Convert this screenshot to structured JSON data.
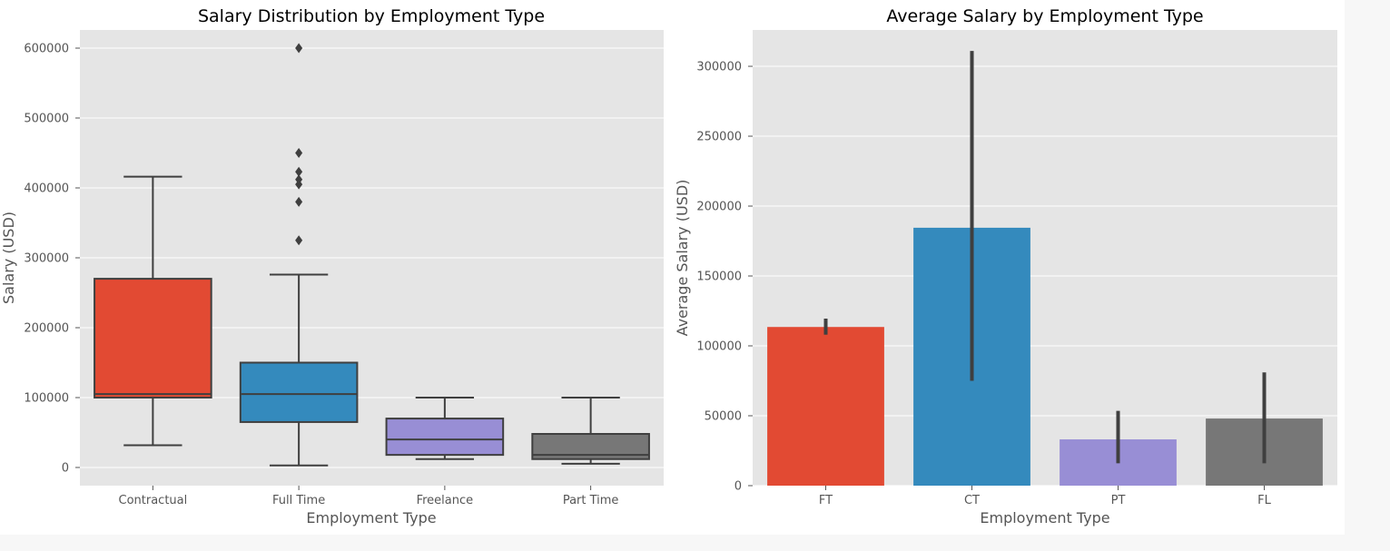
{
  "chart_data": [
    {
      "type": "box",
      "title": "Salary Distribution by Employment Type",
      "xlabel": "Employment Type",
      "ylabel": "Salary (USD)",
      "ylim": [
        -26000,
        626000
      ],
      "yticks": [
        0,
        100000,
        200000,
        300000,
        400000,
        500000,
        600000
      ],
      "ytick_labels": [
        "0",
        "100000",
        "200000",
        "300000",
        "400000",
        "500000",
        "600000"
      ],
      "grid": true,
      "categories": [
        "Contractual",
        "Full Time",
        "Freelance",
        "Part Time"
      ],
      "boxes": [
        {
          "name": "Contractual",
          "color": "#E24A33",
          "whisker_low": 31875,
          "q1": 100000,
          "median": 105000,
          "q3": 270000,
          "whisker_high": 416000,
          "outliers": []
        },
        {
          "name": "Full Time",
          "color": "#348ABD",
          "whisker_low": 2859,
          "q1": 65000,
          "median": 105000,
          "q3": 150000,
          "whisker_high": 276000,
          "outliers": [
            325000,
            380000,
            405000,
            412000,
            423000,
            450000,
            600000
          ]
        },
        {
          "name": "Freelance",
          "color": "#988ED5",
          "whisker_low": 12000,
          "q1": 18000,
          "median": 40000,
          "q3": 70000,
          "whisker_high": 100000,
          "outliers": []
        },
        {
          "name": "Part Time",
          "color": "#777777",
          "whisker_low": 5409,
          "q1": 12000,
          "median": 18000,
          "q3": 48000,
          "whisker_high": 100000,
          "outliers": []
        }
      ]
    },
    {
      "type": "bar",
      "title": "Average Salary by Employment Type",
      "xlabel": "Employment Type",
      "ylabel": "Average Salary (USD)",
      "ylim": [
        0,
        326000
      ],
      "yticks": [
        0,
        50000,
        100000,
        150000,
        200000,
        250000,
        300000
      ],
      "ytick_labels": [
        "0",
        "50000",
        "100000",
        "150000",
        "200000",
        "250000",
        "300000"
      ],
      "grid": true,
      "categories": [
        "FT",
        "CT",
        "PT",
        "FL"
      ],
      "values": [
        113500,
        184500,
        33100,
        48000
      ],
      "error_low": [
        108000,
        75000,
        16000,
        16000
      ],
      "error_high": [
        119500,
        311000,
        53500,
        81000
      ],
      "colors": [
        "#E24A33",
        "#348ABD",
        "#988ED5",
        "#777777"
      ]
    }
  ]
}
